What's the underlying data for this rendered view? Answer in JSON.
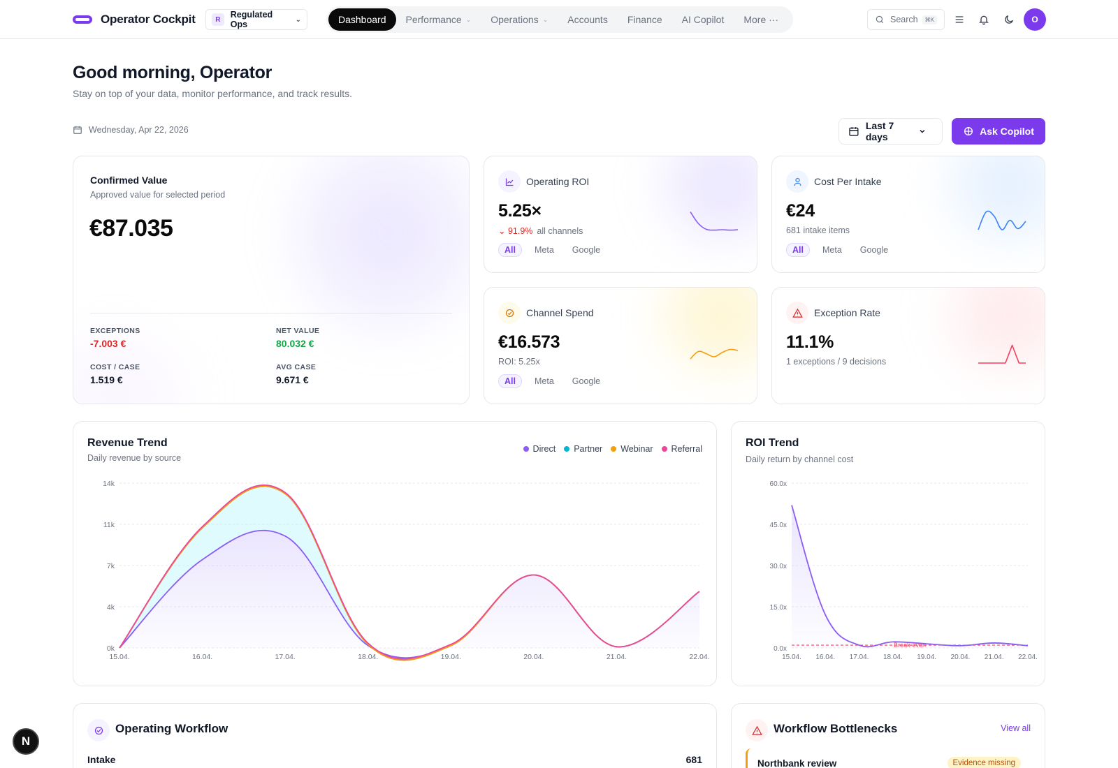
{
  "nav": {
    "brand": "Operator Cockpit",
    "org_initial": "R",
    "org_name": "Regulated Ops",
    "items": [
      {
        "label": "Dashboard",
        "active": true,
        "dropdown": false
      },
      {
        "label": "Performance",
        "active": false,
        "dropdown": true
      },
      {
        "label": "Operations",
        "active": false,
        "dropdown": true
      },
      {
        "label": "Accounts",
        "active": false,
        "dropdown": false
      },
      {
        "label": "Finance",
        "active": false,
        "dropdown": false
      },
      {
        "label": "AI Copilot",
        "active": false,
        "dropdown": false
      },
      {
        "label": "More ···",
        "active": false,
        "dropdown": false
      }
    ],
    "search_label": "Search",
    "search_shortcut": "⌘K",
    "avatar_initial": "O",
    "icons": [
      "menu-icon",
      "bell-icon",
      "moon-icon"
    ]
  },
  "header": {
    "greeting": "Good morning, Operator",
    "subtitle": "Stay on top of your data, monitor performance, and track results.",
    "date": "Wednesday, Apr 22, 2026",
    "range_label": "Last 7 days",
    "copilot_label": "Ask Copilot"
  },
  "confirmed": {
    "title": "Confirmed Value",
    "subtitle": "Approved value for selected period",
    "value": "€87.035",
    "stats": [
      {
        "label": "EXCEPTIONS",
        "value": "-7.003 €",
        "tone": "red"
      },
      {
        "label": "NET VALUE",
        "value": "80.032 €",
        "tone": "green"
      },
      {
        "label": "COST / CASE",
        "value": "1.519 €",
        "tone": "default"
      },
      {
        "label": "AVG CASE",
        "value": "9.671 €",
        "tone": "default"
      }
    ]
  },
  "kpis": {
    "roi": {
      "title": "Operating ROI",
      "value": "5.25×",
      "delta": "⌄ 91.9%",
      "sub": "all channels",
      "chips": [
        "All",
        "Meta",
        "Google"
      ],
      "color": "#8b5cf6",
      "spark": [
        0.95,
        0.4,
        0.12,
        0.08,
        0.1,
        0.08,
        0.1
      ]
    },
    "cpi": {
      "title": "Cost Per Intake",
      "value": "€24",
      "sub": "681 intake items",
      "chips": [
        "All",
        "Meta",
        "Google"
      ],
      "color": "#3b82f6",
      "spark": [
        0.1,
        0.95,
        0.75,
        0.1,
        0.55,
        0.15,
        0.5
      ]
    },
    "spend": {
      "title": "Channel Spend",
      "value": "€16.573",
      "sub": "ROI: 5.25x",
      "chips": [
        "All",
        "Meta",
        "Google"
      ],
      "color": "#f59e0b",
      "spark": [
        0.2,
        0.55,
        0.45,
        0.3,
        0.5,
        0.65,
        0.6
      ]
    },
    "exception": {
      "title": "Exception Rate",
      "value": "11.1%",
      "sub": "1 exceptions / 9 decisions",
      "color": "#f43f5e",
      "spark": [
        0,
        0,
        0,
        0,
        0,
        0.85,
        0,
        0
      ]
    }
  },
  "revenue": {
    "title": "Revenue Trend",
    "subtitle": "Daily revenue by source",
    "legend": [
      {
        "name": "Direct",
        "color": "#8b5cf6"
      },
      {
        "name": "Partner",
        "color": "#06b6d4"
      },
      {
        "name": "Webinar",
        "color": "#f59e0b"
      },
      {
        "name": "Referral",
        "color": "#ec4899"
      }
    ]
  },
  "roi_trend": {
    "title": "ROI Trend",
    "subtitle": "Daily return by channel cost",
    "break_even_label": "Break-even"
  },
  "chart_data": [
    {
      "type": "area",
      "title": "Revenue Trend",
      "subtitle": "Daily revenue by source",
      "categories": [
        "15.04.",
        "16.04.",
        "17.04.",
        "18.04.",
        "19.04.",
        "20.04.",
        "21.04.",
        "22.04."
      ],
      "y_ticks": [
        "0k",
        "4k",
        "7k",
        "11k",
        "14k"
      ],
      "ylim": [
        0,
        14000
      ],
      "stacked": true,
      "legend_position": "top-right",
      "series": [
        {
          "name": "Direct",
          "values": [
            0,
            7500,
            9500,
            200,
            200,
            6200,
            100,
            4800
          ]
        },
        {
          "name": "Partner",
          "values": [
            0,
            2700,
            3600,
            100,
            0,
            0,
            0,
            0
          ]
        },
        {
          "name": "Webinar",
          "values": [
            0,
            0,
            0,
            0,
            0,
            0,
            0,
            0
          ]
        },
        {
          "name": "Referral",
          "values": [
            0,
            100,
            100,
            100,
            100,
            0,
            0,
            0
          ]
        }
      ]
    },
    {
      "type": "line",
      "title": "ROI Trend",
      "subtitle": "Daily return by channel cost",
      "categories": [
        "15.04.",
        "16.04.",
        "17.04.",
        "18.04.",
        "19.04.",
        "20.04.",
        "21.04.",
        "22.04."
      ],
      "y_ticks": [
        "0.0x",
        "15.0x",
        "30.0x",
        "45.0x",
        "60.0x"
      ],
      "ylim": [
        0,
        60
      ],
      "series": [
        {
          "name": "ROI",
          "values": [
            52,
            12,
            1,
            2.2,
            1.5,
            0.8,
            1.8,
            0.8
          ]
        }
      ],
      "reference_line": {
        "value": 1,
        "label": "Break-even"
      }
    }
  ],
  "workflow": {
    "title": "Operating Workflow",
    "rows": [
      {
        "label": "Intake",
        "value": "681"
      }
    ]
  },
  "bottlenecks": {
    "title": "Workflow Bottlenecks",
    "view_all": "View all",
    "items": [
      {
        "name": "Northbank review",
        "badge": "Evidence missing"
      }
    ]
  },
  "next_badge": "N"
}
